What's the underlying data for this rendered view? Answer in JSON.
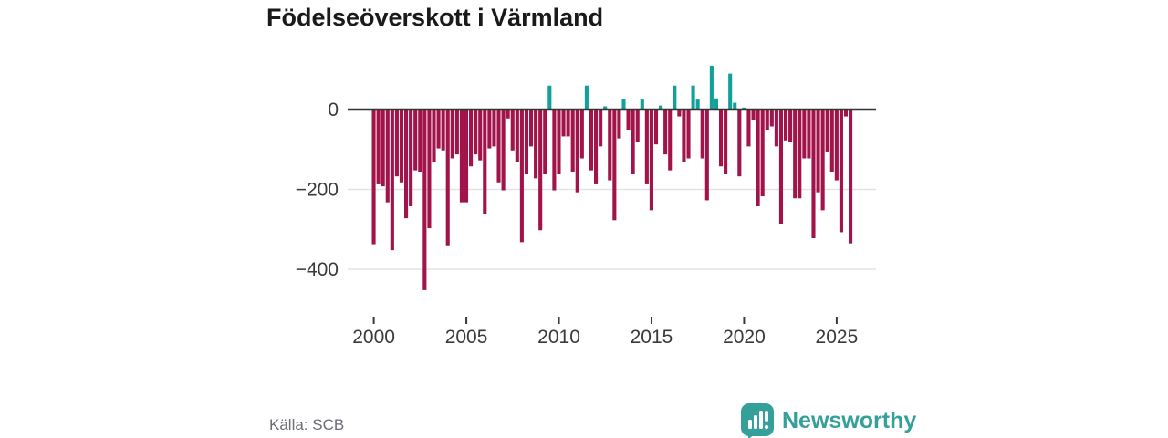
{
  "title": "Födelseöverskott i Värmland",
  "source": "Källa: SCB",
  "footer": {
    "brand": "Newsworthy",
    "logo_icon": "newsworthy-speech-bubble-bar-chart-icon"
  },
  "colors": {
    "negative_bar": "#a11349",
    "positive_bar": "#14a09a",
    "zero_line": "#333333",
    "gridline": "#e3e3e3",
    "axis_text": "#3a3a3a",
    "title_text": "#1a1a1a",
    "source_text": "#6d6d76",
    "brand_teal": "#35a09a",
    "background": "#ffffff"
  },
  "chart_data": {
    "type": "bar",
    "title": "Födelseöverskott i Värmland",
    "xlabel": "",
    "ylabel": "",
    "frequency": "quarterly",
    "x_start": "2000Q1",
    "x_end": "2025Q4",
    "ylim": [
      -470,
      130
    ],
    "grid": "horizontal",
    "legend": "none",
    "y_ticks": [
      0,
      -200,
      -400
    ],
    "y_tick_labels": [
      "0",
      "−200",
      "−400"
    ],
    "x_tick_years": [
      2000,
      2005,
      2010,
      2015,
      2020,
      2025
    ],
    "x_tick_labels": [
      "2000",
      "2005",
      "2010",
      "2015",
      "2020",
      "2025"
    ],
    "quarters": [
      "2000Q1",
      "2000Q2",
      "2000Q3",
      "2000Q4",
      "2001Q1",
      "2001Q2",
      "2001Q3",
      "2001Q4",
      "2002Q1",
      "2002Q2",
      "2002Q3",
      "2002Q4",
      "2003Q1",
      "2003Q2",
      "2003Q3",
      "2003Q4",
      "2004Q1",
      "2004Q2",
      "2004Q3",
      "2004Q4",
      "2005Q1",
      "2005Q2",
      "2005Q3",
      "2005Q4",
      "2006Q1",
      "2006Q2",
      "2006Q3",
      "2006Q4",
      "2007Q1",
      "2007Q2",
      "2007Q3",
      "2007Q4",
      "2008Q1",
      "2008Q2",
      "2008Q3",
      "2008Q4",
      "2009Q1",
      "2009Q2",
      "2009Q3",
      "2009Q4",
      "2010Q1",
      "2010Q2",
      "2010Q3",
      "2010Q4",
      "2011Q1",
      "2011Q2",
      "2011Q3",
      "2011Q4",
      "2012Q1",
      "2012Q2",
      "2012Q3",
      "2012Q4",
      "2013Q1",
      "2013Q2",
      "2013Q3",
      "2013Q4",
      "2014Q1",
      "2014Q2",
      "2014Q3",
      "2014Q4",
      "2015Q1",
      "2015Q2",
      "2015Q3",
      "2015Q4",
      "2016Q1",
      "2016Q2",
      "2016Q3",
      "2016Q4",
      "2017Q1",
      "2017Q2",
      "2017Q3",
      "2017Q4",
      "2018Q1",
      "2018Q2",
      "2018Q3",
      "2018Q4",
      "2019Q1",
      "2019Q2",
      "2019Q3",
      "2019Q4",
      "2020Q1",
      "2020Q2",
      "2020Q3",
      "2020Q4",
      "2021Q1",
      "2021Q2",
      "2021Q3",
      "2021Q4",
      "2022Q1",
      "2022Q2",
      "2022Q3",
      "2022Q4",
      "2023Q1",
      "2023Q2",
      "2023Q3",
      "2023Q4",
      "2024Q1",
      "2024Q2",
      "2024Q3",
      "2024Q4",
      "2025Q1",
      "2025Q2",
      "2025Q3",
      "2025Q4"
    ],
    "values": [
      -335,
      -185,
      -190,
      -230,
      -350,
      -165,
      -180,
      -270,
      -240,
      -150,
      -155,
      -450,
      -295,
      -130,
      -95,
      -100,
      -340,
      -120,
      -110,
      -230,
      -230,
      -140,
      -110,
      -125,
      -260,
      -95,
      -90,
      -180,
      -200,
      -20,
      -100,
      -130,
      -330,
      -160,
      -90,
      -170,
      -300,
      -160,
      60,
      -200,
      -160,
      -65,
      -65,
      -155,
      -205,
      -120,
      60,
      -150,
      -185,
      -90,
      8,
      -175,
      -275,
      -70,
      25,
      -50,
      -160,
      -80,
      25,
      -185,
      -250,
      -85,
      10,
      -110,
      -150,
      60,
      -15,
      -130,
      -120,
      60,
      25,
      -120,
      -225,
      110,
      28,
      -140,
      -160,
      90,
      17,
      -165,
      5,
      -90,
      -25,
      -240,
      -215,
      -50,
      -40,
      -90,
      -285,
      -75,
      -80,
      -220,
      -220,
      -120,
      -120,
      -320,
      -205,
      -250,
      -105,
      -155,
      -175,
      -305,
      -15,
      -333
    ]
  }
}
